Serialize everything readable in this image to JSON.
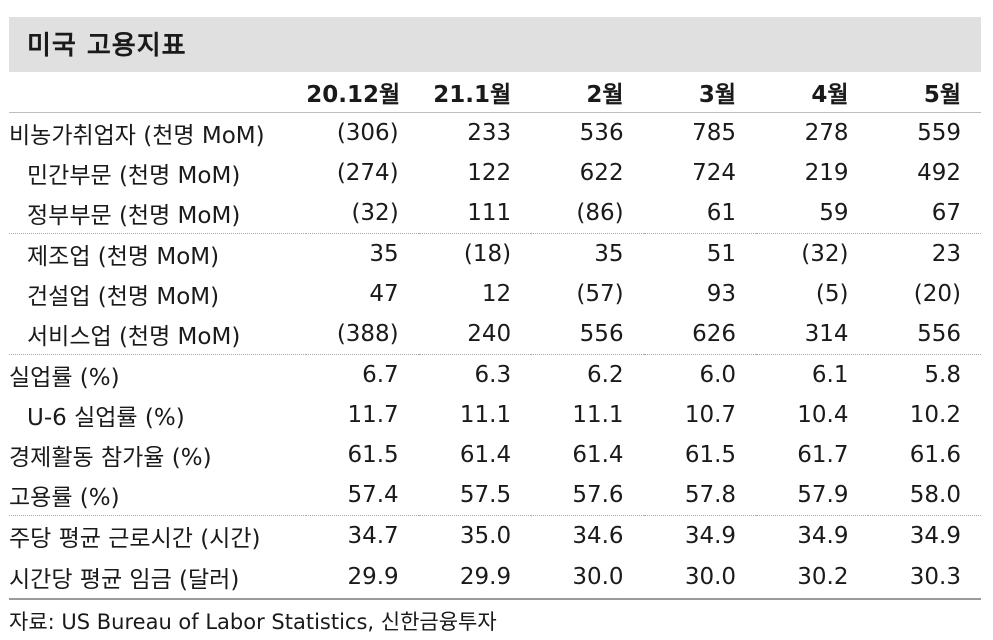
{
  "title": "미국 고용지표",
  "headers": [
    "",
    "20.12월",
    "21.1월",
    "2월",
    "3월",
    "4월",
    "5월"
  ],
  "rows": [
    {
      "label": "비농가취업자 (천명 MoM)",
      "values": [
        "(306)",
        "233",
        "536",
        "785",
        "278",
        "559"
      ]
    },
    {
      "label": "민간부문 (천명 MoM)",
      "values": [
        "(274)",
        "122",
        "622",
        "724",
        "219",
        "492"
      ]
    },
    {
      "label": "정부부문 (천명 MoM)",
      "values": [
        "(32)",
        "111",
        "(86)",
        "61",
        "59",
        "67"
      ]
    },
    {
      "label": "제조업 (천명 MoM)",
      "values": [
        "35",
        "(18)",
        "35",
        "51",
        "(32)",
        "23"
      ]
    },
    {
      "label": "건설업 (천명 MoM)",
      "values": [
        "47",
        "12",
        "(57)",
        "93",
        "(5)",
        "(20)"
      ]
    },
    {
      "label": "서비스업 (천명 MoM)",
      "values": [
        "(388)",
        "240",
        "556",
        "626",
        "314",
        "556"
      ]
    },
    {
      "label": "실업률 (%)",
      "values": [
        "6.7",
        "6.3",
        "6.2",
        "6.0",
        "6.1",
        "5.8"
      ]
    },
    {
      "label": "U-6 실업률 (%)",
      "values": [
        "11.7",
        "11.1",
        "11.1",
        "10.7",
        "10.4",
        "10.2"
      ]
    },
    {
      "label": "경제활동 참가율 (%)",
      "values": [
        "61.5",
        "61.4",
        "61.4",
        "61.5",
        "61.7",
        "61.6"
      ]
    },
    {
      "label": "고용률 (%)",
      "values": [
        "57.4",
        "57.5",
        "57.6",
        "57.8",
        "57.9",
        "58.0"
      ]
    },
    {
      "label": "주당 평균 근로시간 (시간)",
      "values": [
        "34.7",
        "35.0",
        "34.6",
        "34.9",
        "34.9",
        "34.9"
      ]
    },
    {
      "label": "시간당 평균 임금 (달러)",
      "values": [
        "29.9",
        "29.9",
        "30.0",
        "30.0",
        "30.2",
        "30.3"
      ]
    }
  ],
  "source": "자료: US Bureau of Labor Statistics, 신한금융투자",
  "colors": {
    "title_bg": "#e0e0e0",
    "text": "#1a1a1a"
  }
}
